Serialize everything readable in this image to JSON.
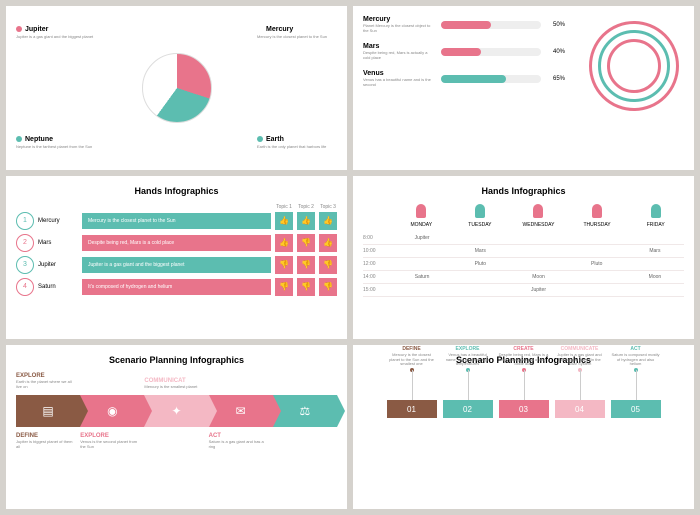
{
  "colors": {
    "pink": "#e8748b",
    "teal": "#5cbdb0",
    "brown": "#8a5a44",
    "gray": "#aaa",
    "lightpink": "#f4b8c4"
  },
  "s1": {
    "legends": [
      {
        "dot": "#e8748b",
        "title": "Jupiter",
        "desc": "Jupiter is a gas giant and the biggest planet",
        "pos": "top:20px;left:10px"
      },
      {
        "dot": "#5cbdb0",
        "title": "Neptune",
        "desc": "Neptune is the farthest planet from the Sun",
        "pos": "bottom:20px;left:10px"
      },
      {
        "dot": "#fff",
        "title": "Mercury",
        "desc": "Mercury is the closest planet to the Sun",
        "pos": "top:20px;right:10px",
        "border": "1px solid #ccc"
      },
      {
        "dot": "#5cbdb0",
        "title": "Earth",
        "desc": "Earth is the only planet that harbors life",
        "pos": "bottom:20px;right:10px"
      }
    ]
  },
  "s2": {
    "items": [
      {
        "title": "Mercury",
        "desc": "Planet Mercury is the closest object to the Sun",
        "pct": 50,
        "color": "#e8748b"
      },
      {
        "title": "Mars",
        "desc": "Despite being red, Mars is actually a cold place",
        "pct": 40,
        "color": "#e8748b"
      },
      {
        "title": "Venus",
        "desc": "Venus has a beautiful name and is the second",
        "pct": 65,
        "color": "#5cbdb0"
      }
    ]
  },
  "s3": {
    "title": "Hands Infographics",
    "topics": [
      "Topic 1",
      "Topic 2",
      "Topic 3"
    ],
    "rows": [
      {
        "n": "1",
        "name": "Mercury",
        "text": "Mercury is the closest planet to the Sun",
        "color": "#5cbdb0",
        "thumbs": [
          "#5cbdb0",
          "#5cbdb0",
          "#5cbdb0"
        ],
        "dir": [
          "↑",
          "↑",
          "↑"
        ]
      },
      {
        "n": "2",
        "name": "Mars",
        "text": "Despite being red, Mars is a cold place",
        "color": "#e8748b",
        "thumbs": [
          "#e8748b",
          "#e8748b",
          "#e8748b"
        ],
        "dir": [
          "↑",
          "↓",
          "↑"
        ]
      },
      {
        "n": "3",
        "name": "Jupiter",
        "text": "Jupiter is a gas giant and the biggest planet",
        "color": "#5cbdb0",
        "thumbs": [
          "#e8748b",
          "#e8748b",
          "#e8748b"
        ],
        "dir": [
          "↓",
          "↓",
          "↓"
        ]
      },
      {
        "n": "4",
        "name": "Saturn",
        "text": "It's composed of hydrogen and helium",
        "color": "#e8748b",
        "thumbs": [
          "#e8748b",
          "#e8748b",
          "#e8748b"
        ],
        "dir": [
          "↓",
          "↓",
          "↓"
        ]
      }
    ]
  },
  "s4": {
    "title": "Hands Infographics",
    "days": [
      "MONDAY",
      "TUESDAY",
      "WEDNESDAY",
      "THURSDAY",
      "FRIDAY"
    ],
    "nailColors": [
      "#e8748b",
      "#5cbdb0",
      "#e8748b",
      "#e8748b",
      "#5cbdb0"
    ],
    "rows": [
      {
        "t": "8:00",
        "c": [
          "Jupiter",
          "",
          "",
          "",
          ""
        ]
      },
      {
        "t": "10:00",
        "c": [
          "",
          "Mars",
          "",
          "",
          "Mars"
        ]
      },
      {
        "t": "12:00",
        "c": [
          "",
          "Pluto",
          "",
          "Pluto",
          ""
        ]
      },
      {
        "t": "14:00",
        "c": [
          "Saturn",
          "",
          "Moon",
          "",
          "Moon"
        ]
      },
      {
        "t": "15:00",
        "c": [
          "",
          "",
          "Jupiter",
          "",
          ""
        ]
      }
    ]
  },
  "s5": {
    "title": "Scenario Planning Infographics",
    "steps": [
      {
        "color": "#8a5a44",
        "icon": "▤",
        "top": {
          "h": "EXPLORE",
          "p": "Earth is the planet where we all live on"
        },
        "bot": {
          "h": "DEFINE",
          "p": "Jupiter is biggest planet of them all"
        }
      },
      {
        "color": "#e8748b",
        "icon": "◉",
        "top": null,
        "bot": {
          "h": "EXPLORE",
          "p": "Venus is the second planet from the Sun"
        }
      },
      {
        "color": "#f4b8c4",
        "icon": "✦",
        "top": {
          "h": "COMMUNICAT",
          "p": "Mercury is the smallest planet"
        },
        "bot": null
      },
      {
        "color": "#e8748b",
        "icon": "✉",
        "top": null,
        "bot": {
          "h": "ACT",
          "p": "Saturn is a gas giant and has a ring"
        }
      },
      {
        "color": "#5cbdb0",
        "icon": "⚖",
        "top": null,
        "bot": null
      }
    ]
  },
  "s6": {
    "title": "Scenario Planning Infographics",
    "items": [
      {
        "n": "01",
        "color": "#8a5a44",
        "h": "DEFINE",
        "p": "Mercury is the closest planet to the Sun and the smallest one"
      },
      {
        "n": "02",
        "color": "#5cbdb0",
        "h": "EXPLORE",
        "p": "Venus has a beautiful name, but also very high temperatures"
      },
      {
        "n": "03",
        "color": "#e8748b",
        "h": "CREATE",
        "p": "Despite being red, Mars is a very cold place full of iron oxide dust"
      },
      {
        "n": "04",
        "color": "#f4b8c4",
        "h": "COMMUNICATE",
        "p": "Jupiter is a gas giant and the biggest planet in the Solar System"
      },
      {
        "n": "05",
        "color": "#5cbdb0",
        "h": "ACT",
        "p": "Saturn is composed mostly of hydrogen and also helium"
      }
    ]
  }
}
